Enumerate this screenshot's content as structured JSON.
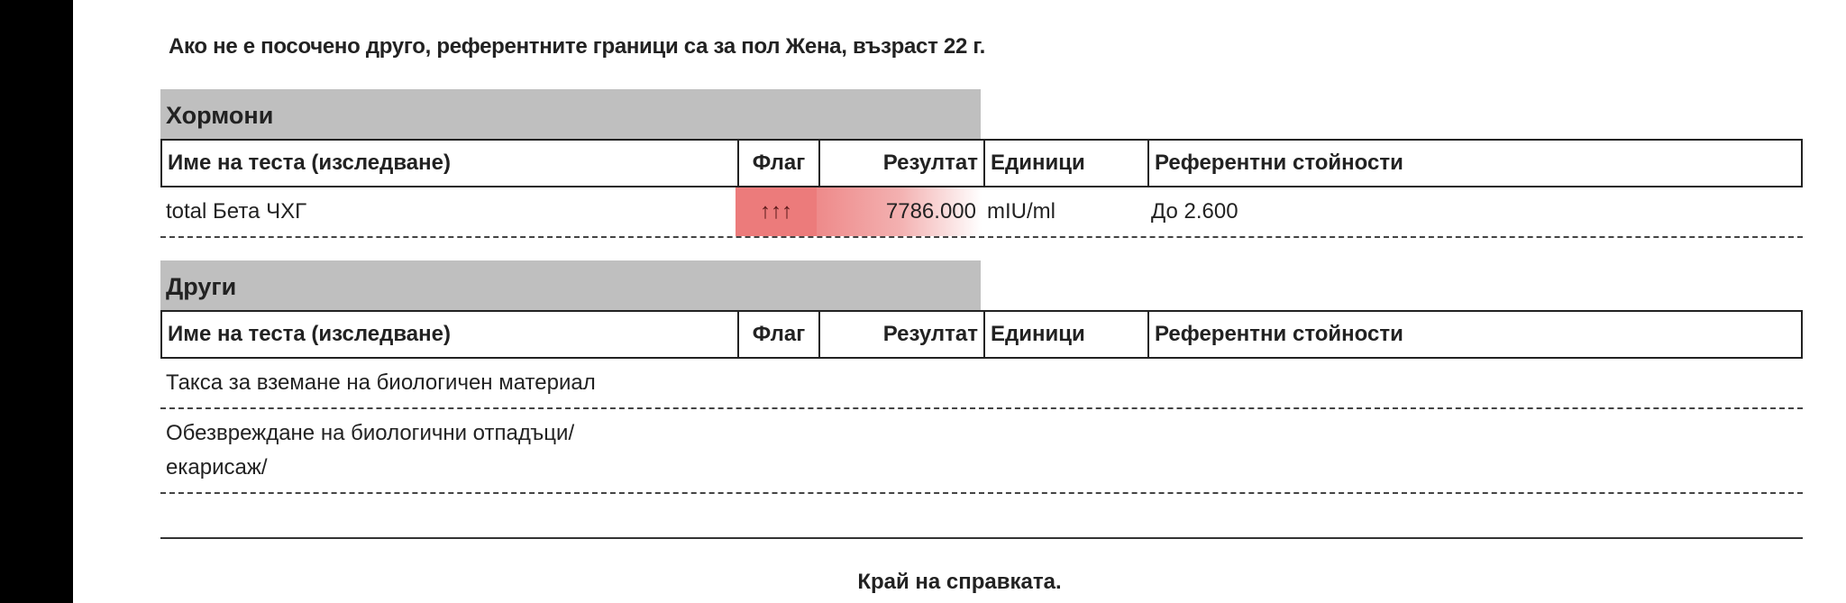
{
  "note": "Ако не е посочено друго, референтните граници са за пол Жена, възраст 22 г.",
  "columns": {
    "name": "Име на теста (изследване)",
    "flag": "Флаг",
    "result": "Резултат",
    "units": "Единици",
    "reference": "Референтни стойности"
  },
  "sections": [
    {
      "title": "Хормони",
      "rows": [
        {
          "name": "total Бета ЧХГ",
          "flag": "↑↑↑",
          "result": "7786.000",
          "units": "mIU/ml",
          "reference": "До 2.600"
        }
      ]
    },
    {
      "title": "Други",
      "rows": [
        {
          "name": "Такса за вземане на биологичен материал"
        },
        {
          "name": "Обезвреждане на биологични отпадъци/ екарисаж/"
        }
      ]
    }
  ],
  "colors": {
    "flag_high": "#ec7b7b",
    "section_header": "#bfbfbf"
  },
  "footer": "Край на справката."
}
